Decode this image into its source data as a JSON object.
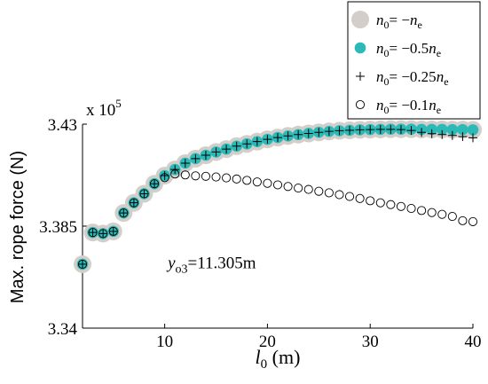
{
  "chart_data": {
    "type": "scatter",
    "xlabel_main": "l",
    "xlabel_sub": "0",
    "xlabel_unit": " (m)",
    "ylabel": "Max. rope force (N)",
    "y_multiplier": "x 10",
    "y_multiplier_exp": "5",
    "xlim": [
      2,
      40
    ],
    "ylim": [
      3.34,
      3.43
    ],
    "xticks": [
      10,
      20,
      30,
      40
    ],
    "xtick_labels": [
      "10",
      "20",
      "30",
      "40"
    ],
    "yticks": [
      3.34,
      3.385,
      3.43
    ],
    "ytick_labels": [
      "3.34",
      "3.385",
      "3.43"
    ],
    "grid": false,
    "legend_position": "top-right",
    "annotation": {
      "main": "y",
      "sub": "o3",
      "rest": "=11.305m",
      "x": 10.3,
      "y": 3.3665
    },
    "x": [
      2,
      3,
      4,
      5,
      6,
      7,
      8,
      9,
      10,
      11,
      12,
      13,
      14,
      15,
      16,
      17,
      18,
      19,
      20,
      21,
      22,
      23,
      24,
      25,
      26,
      27,
      28,
      29,
      30,
      31,
      32,
      33,
      34,
      35,
      36,
      37,
      38,
      39,
      40
    ],
    "series": [
      {
        "label_main": "n",
        "label_sub": "0",
        "label_eq": "= −",
        "label_coef": "",
        "label_rhs": "n",
        "label_rhs_sub": "e",
        "marker": "big-disc",
        "color": "#d3cec9",
        "values": [
          3.3682,
          3.3822,
          3.3817,
          3.3827,
          3.3908,
          3.3953,
          3.3993,
          3.4037,
          3.4073,
          3.41,
          3.4128,
          3.4148,
          3.4163,
          3.4177,
          3.419,
          3.4203,
          3.4213,
          3.4223,
          3.4233,
          3.4241,
          3.4248,
          3.4254,
          3.4259,
          3.4264,
          3.4268,
          3.4271,
          3.4273,
          3.4275,
          3.4276,
          3.4277,
          3.4278,
          3.4278,
          3.4278,
          3.4277,
          3.4277,
          3.4277,
          3.4276,
          3.4276,
          3.4275
        ]
      },
      {
        "label_main": "n",
        "label_sub": "0",
        "label_eq": "= −0.5",
        "label_coef": "",
        "label_rhs": "n",
        "label_rhs_sub": "e",
        "marker": "teal-disc",
        "color": "#2bbab7",
        "values": [
          3.3682,
          3.3822,
          3.3817,
          3.3827,
          3.3908,
          3.3953,
          3.3993,
          3.4037,
          3.4073,
          3.41,
          3.4128,
          3.4148,
          3.4163,
          3.4177,
          3.419,
          3.4203,
          3.4213,
          3.4223,
          3.4233,
          3.4241,
          3.4248,
          3.4254,
          3.4259,
          3.4264,
          3.4268,
          3.4271,
          3.4273,
          3.4275,
          3.4276,
          3.4277,
          3.4278,
          3.4278,
          3.4278,
          3.4277,
          3.4277,
          3.4277,
          3.4276,
          3.4276,
          3.4275
        ]
      },
      {
        "label_main": "n",
        "label_sub": "0",
        "label_eq": "= −0.25",
        "label_coef": "",
        "label_rhs": "n",
        "label_rhs_sub": "e",
        "marker": "plus",
        "color": "#000000",
        "values": [
          3.3682,
          3.3822,
          3.3817,
          3.3827,
          3.3908,
          3.3953,
          3.3993,
          3.4037,
          3.4073,
          3.41,
          3.4128,
          3.4148,
          3.4163,
          3.4177,
          3.419,
          3.4203,
          3.4213,
          3.4223,
          3.4233,
          3.4241,
          3.4248,
          3.4254,
          3.4259,
          3.4264,
          3.4268,
          3.4271,
          3.4273,
          3.4275,
          3.4276,
          3.4277,
          3.4277,
          3.4276,
          3.4272,
          3.4264,
          3.4258,
          3.4254,
          3.425,
          3.4245,
          3.424
        ]
      },
      {
        "label_main": "n",
        "label_sub": "0",
        "label_eq": "= −0.1",
        "label_coef": "",
        "label_rhs": "n",
        "label_rhs_sub": "e",
        "marker": "open-circle",
        "color": "#000000",
        "values": [
          3.3682,
          3.3822,
          3.3817,
          3.3827,
          3.3908,
          3.3953,
          3.3993,
          3.4037,
          3.4064,
          3.408,
          3.4076,
          3.4072,
          3.407,
          3.4067,
          3.4063,
          3.4058,
          3.4052,
          3.4045,
          3.4039,
          3.4032,
          3.4025,
          3.4018,
          3.4012,
          3.4004,
          3.3997,
          3.3989,
          3.3981,
          3.3972,
          3.3962,
          3.3953,
          3.3945,
          3.3937,
          3.3928,
          3.3919,
          3.391,
          3.3902,
          3.3893,
          3.3874,
          3.387
        ]
      }
    ]
  }
}
